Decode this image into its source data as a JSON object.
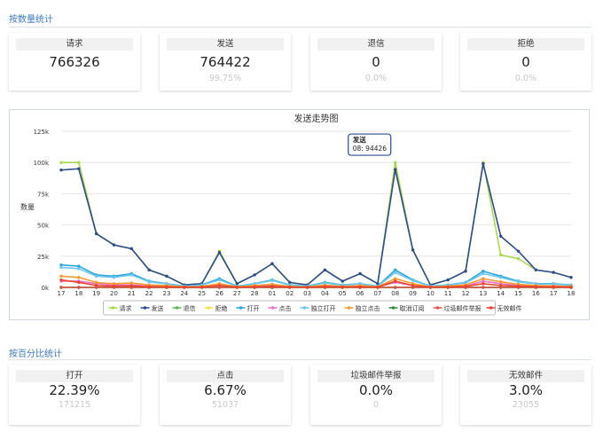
{
  "section1": {
    "title": "按数量统计"
  },
  "stats": [
    {
      "label": "请求",
      "value": "766326",
      "sub": ""
    },
    {
      "label": "发送",
      "value": "764422",
      "sub": "99.75%"
    },
    {
      "label": "退信",
      "value": "0",
      "sub": "0.0%"
    },
    {
      "label": "拒绝",
      "value": "0",
      "sub": "0.0%"
    }
  ],
  "section2": {
    "title": "按百分比统计"
  },
  "pct_stats": [
    {
      "label": "打开",
      "value": "22.39%",
      "sub": "171215"
    },
    {
      "label": "点击",
      "value": "6.67%",
      "sub": "51037"
    },
    {
      "label": "垃圾邮件举报",
      "value": "0.0%",
      "sub": "0"
    },
    {
      "label": "无效邮件",
      "value": "3.0%",
      "sub": "23055"
    }
  ],
  "tooltip": {
    "series": "发送",
    "text": "08: 94426"
  },
  "chart_data": {
    "type": "line",
    "title": "发送走势图",
    "ylabel": "数量",
    "ylim": [
      0,
      125000
    ],
    "yticks": [
      "0k",
      "25k",
      "50k",
      "75k",
      "100k",
      "125k"
    ],
    "categories": [
      "17",
      "18",
      "19",
      "20",
      "21",
      "22",
      "23",
      "24",
      "25",
      "26",
      "27",
      "28",
      "01",
      "02",
      "03",
      "04",
      "05",
      "06",
      "07",
      "08",
      "09",
      "10",
      "11",
      "12",
      "13",
      "14",
      "15",
      "16",
      "17",
      "18"
    ],
    "legend_position": "bottom",
    "series": [
      {
        "name": "请求",
        "color": "#a8d84e",
        "values": [
          100000,
          100000,
          43000,
          34000,
          31000,
          14000,
          9000,
          2000,
          3000,
          29000,
          3000,
          10000,
          19000,
          4000,
          2000,
          14000,
          5000,
          11000,
          3000,
          100000,
          30000,
          2000,
          6000,
          13000,
          100000,
          26000,
          23000,
          14000,
          12000,
          8000
        ]
      },
      {
        "name": "发送",
        "color": "#2d4d8a",
        "values": [
          94000,
          95000,
          43000,
          34000,
          31000,
          14000,
          9000,
          2000,
          3000,
          28000,
          3000,
          10000,
          19000,
          4000,
          2000,
          14000,
          5000,
          11000,
          3000,
          94426,
          30000,
          2000,
          6000,
          13000,
          99000,
          41000,
          29000,
          14000,
          12000,
          8000
        ]
      },
      {
        "name": "退信",
        "color": "#5cb85c",
        "values": [
          0,
          0,
          0,
          0,
          0,
          0,
          0,
          0,
          0,
          0,
          0,
          0,
          0,
          0,
          0,
          0,
          0,
          0,
          0,
          0,
          0,
          0,
          0,
          0,
          0,
          0,
          0,
          0,
          0,
          0
        ]
      },
      {
        "name": "拒绝",
        "color": "#f0e24a",
        "values": [
          0,
          0,
          0,
          0,
          0,
          0,
          0,
          0,
          0,
          0,
          0,
          0,
          0,
          0,
          0,
          0,
          0,
          0,
          0,
          0,
          0,
          0,
          0,
          0,
          0,
          0,
          0,
          0,
          0,
          0
        ]
      },
      {
        "name": "打开",
        "color": "#2aa7d8",
        "values": [
          18000,
          17000,
          10000,
          9000,
          11000,
          5000,
          3000,
          1000,
          2000,
          7000,
          1000,
          3000,
          6000,
          2000,
          1000,
          4000,
          2000,
          3000,
          1000,
          14000,
          6000,
          1000,
          2000,
          4000,
          13000,
          9000,
          5000,
          3000,
          3000,
          2000
        ]
      },
      {
        "name": "点击",
        "color": "#e873c7",
        "values": [
          5000,
          5000,
          3000,
          2000,
          2000,
          1000,
          1000,
          0,
          500,
          2000,
          300,
          800,
          1500,
          500,
          200,
          1000,
          500,
          800,
          300,
          4000,
          1500,
          200,
          500,
          1000,
          5000,
          3000,
          1500,
          1000,
          800,
          500
        ]
      },
      {
        "name": "独立打开",
        "color": "#6ec6ea",
        "values": [
          16000,
          15000,
          9000,
          8000,
          10000,
          4500,
          2800,
          900,
          1800,
          6000,
          900,
          2800,
          5500,
          1800,
          900,
          3500,
          1800,
          2800,
          900,
          12000,
          5500,
          900,
          1800,
          3600,
          11000,
          8000,
          4500,
          2800,
          2600,
          1800
        ]
      },
      {
        "name": "独立点击",
        "color": "#f59a2e",
        "values": [
          9000,
          8000,
          4000,
          3000,
          3500,
          2000,
          1500,
          500,
          800,
          3000,
          500,
          1500,
          2500,
          800,
          400,
          1800,
          800,
          1500,
          500,
          7000,
          3000,
          400,
          1000,
          2000,
          7000,
          4500,
          2500,
          1500,
          1200,
          800
        ]
      },
      {
        "name": "取消订阅",
        "color": "#2e8b3e",
        "values": [
          0,
          0,
          0,
          0,
          0,
          0,
          0,
          0,
          0,
          0,
          0,
          0,
          0,
          0,
          0,
          0,
          0,
          0,
          0,
          0,
          0,
          0,
          0,
          0,
          0,
          0,
          0,
          0,
          0,
          0
        ]
      },
      {
        "name": "垃圾邮件举报",
        "color": "#d9534f",
        "values": [
          0,
          0,
          0,
          0,
          0,
          0,
          0,
          0,
          0,
          0,
          0,
          0,
          0,
          0,
          0,
          0,
          0,
          0,
          0,
          0,
          0,
          0,
          0,
          0,
          0,
          0,
          0,
          0,
          0,
          0
        ]
      },
      {
        "name": "无效邮件",
        "color": "#e8452c",
        "values": [
          6000,
          4000,
          1500,
          1000,
          1200,
          600,
          400,
          200,
          300,
          1500,
          200,
          500,
          900,
          300,
          200,
          600,
          300,
          500,
          200,
          5000,
          1500,
          200,
          400,
          800,
          3000,
          1500,
          1000,
          600,
          500,
          300
        ]
      }
    ]
  }
}
